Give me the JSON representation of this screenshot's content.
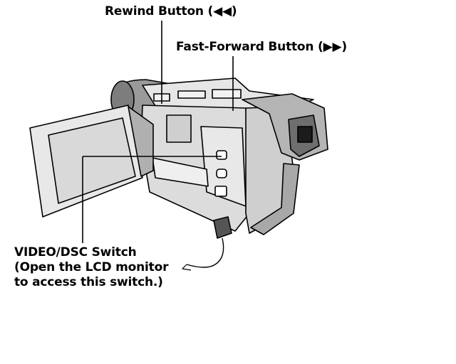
{
  "labels": {
    "rewind": "Rewind Button (◀◀)",
    "fast_forward": "Fast-Forward Button (▶▶)",
    "switch_line1": "VIDEO/DSC Switch",
    "switch_line2": "(Open the LCD monitor",
    "switch_line3": "to access this switch.)"
  },
  "colors": {
    "line": "#000000",
    "body_light": "#e6e6e6",
    "body_mid": "#bdbdbd",
    "body_dark": "#8c8c8c",
    "screen": "#d9d9d9"
  }
}
